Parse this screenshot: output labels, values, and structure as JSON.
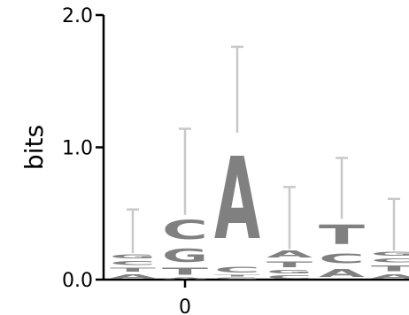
{
  "chart_data": {
    "type": "sequence-logo",
    "ylabel": "bits",
    "ylim": [
      0,
      2.0
    ],
    "y_ticks": [
      {
        "value": 0.0,
        "label": "0.0"
      },
      {
        "value": 1.0,
        "label": "1.0"
      },
      {
        "value": 2.0,
        "label": "2.0"
      }
    ],
    "x_tick_position": 1,
    "x_tick_label": "0",
    "colors": {
      "letters": "#808080",
      "error_bars": "#c8c8c8",
      "axis": "#000000"
    },
    "positions": [
      {
        "index": 0,
        "error_top": 0.53,
        "letters": [
          {
            "char": "A",
            "bottom": 0.0,
            "height": 0.05
          },
          {
            "char": "T",
            "bottom": 0.05,
            "height": 0.05
          },
          {
            "char": "C",
            "bottom": 0.1,
            "height": 0.05
          },
          {
            "char": "G",
            "bottom": 0.15,
            "height": 0.05
          }
        ]
      },
      {
        "index": 1,
        "error_top": 1.14,
        "letters": [
          {
            "char": "A",
            "bottom": 0.0,
            "height": 0.02
          },
          {
            "char": "T",
            "bottom": 0.02,
            "height": 0.08
          },
          {
            "char": "G",
            "bottom": 0.1,
            "height": 0.16
          },
          {
            "char": "C",
            "bottom": 0.26,
            "height": 0.23
          }
        ]
      },
      {
        "index": 2,
        "error_top": 1.76,
        "letters": [
          {
            "char": "G",
            "bottom": 0.0,
            "height": 0.02
          },
          {
            "char": "T",
            "bottom": 0.02,
            "height": 0.02
          },
          {
            "char": "C",
            "bottom": 0.04,
            "height": 0.07
          },
          {
            "char": "A",
            "bottom": 0.11,
            "height": 1.0
          }
        ]
      },
      {
        "index": 3,
        "error_top": 0.7,
        "letters": [
          {
            "char": "C",
            "bottom": 0.0,
            "height": 0.04
          },
          {
            "char": "G",
            "bottom": 0.04,
            "height": 0.04
          },
          {
            "char": "T",
            "bottom": 0.08,
            "height": 0.07
          },
          {
            "char": "A",
            "bottom": 0.15,
            "height": 0.08
          }
        ]
      },
      {
        "index": 4,
        "error_top": 0.92,
        "letters": [
          {
            "char": "A",
            "bottom": 0.0,
            "height": 0.1
          },
          {
            "char": "C",
            "bottom": 0.1,
            "height": 0.12
          },
          {
            "char": "T",
            "bottom": 0.22,
            "height": 0.24
          }
        ]
      },
      {
        "index": 5,
        "error_top": 0.61,
        "letters": [
          {
            "char": "A",
            "bottom": 0.0,
            "height": 0.05
          },
          {
            "char": "T",
            "bottom": 0.05,
            "height": 0.07
          },
          {
            "char": "C",
            "bottom": 0.12,
            "height": 0.05
          },
          {
            "char": "G",
            "bottom": 0.17,
            "height": 0.05
          }
        ]
      }
    ]
  }
}
